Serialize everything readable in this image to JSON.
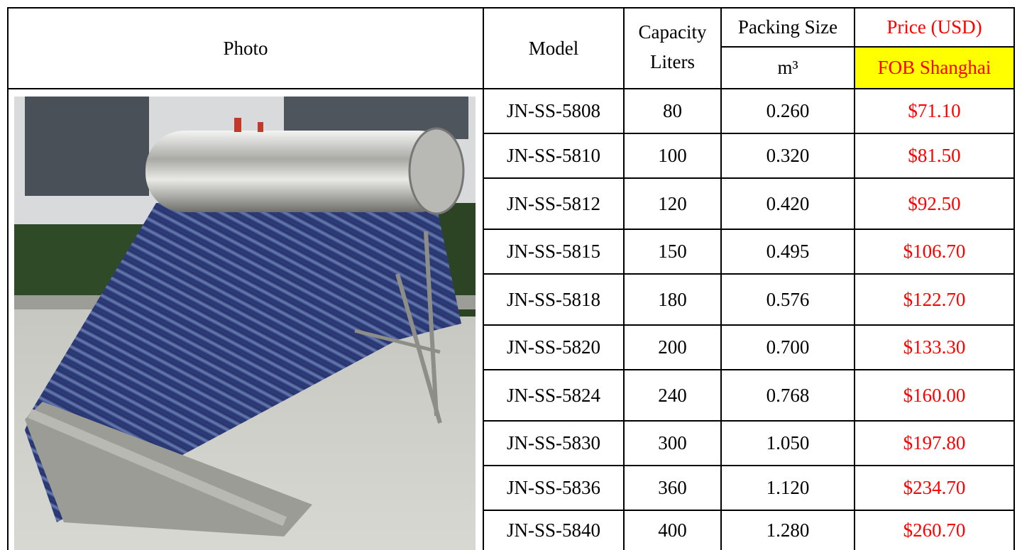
{
  "header": {
    "photo": "Photo",
    "model": "Model",
    "capacity_line1": "Capacity",
    "capacity_line2": "Liters",
    "packing_line1": "Packing Size",
    "packing_line2": "m³",
    "price_line1": "Price (USD)",
    "price_line2": "FOB Shanghai"
  },
  "rows": [
    {
      "model": "JN-SS-5808",
      "capacity": "80",
      "packing": "0.260",
      "price": "$71.10"
    },
    {
      "model": "JN-SS-5810",
      "capacity": "100",
      "packing": "0.320",
      "price": "$81.50"
    },
    {
      "model": "JN-SS-5812",
      "capacity": "120",
      "packing": "0.420",
      "price": "$92.50"
    },
    {
      "model": "JN-SS-5815",
      "capacity": "150",
      "packing": "0.495",
      "price": "$106.70"
    },
    {
      "model": "JN-SS-5818",
      "capacity": "180",
      "packing": "0.576",
      "price": "$122.70"
    },
    {
      "model": "JN-SS-5820",
      "capacity": "200",
      "packing": "0.700",
      "price": "$133.30"
    },
    {
      "model": "JN-SS-5824",
      "capacity": "240",
      "packing": "0.768",
      "price": "$160.00"
    },
    {
      "model": "JN-SS-5830",
      "capacity": "300",
      "packing": "1.050",
      "price": "$197.80"
    },
    {
      "model": "JN-SS-5836",
      "capacity": "360",
      "packing": "1.120",
      "price": "$234.70"
    },
    {
      "model": "JN-SS-5840",
      "capacity": "400",
      "packing": "1.280",
      "price": "$260.70"
    }
  ],
  "colors": {
    "price_text": "#ff0000",
    "fob_highlight": "#ffff00",
    "border": "#000000"
  },
  "image": {
    "subject": "stainless steel solar water heater photo"
  }
}
